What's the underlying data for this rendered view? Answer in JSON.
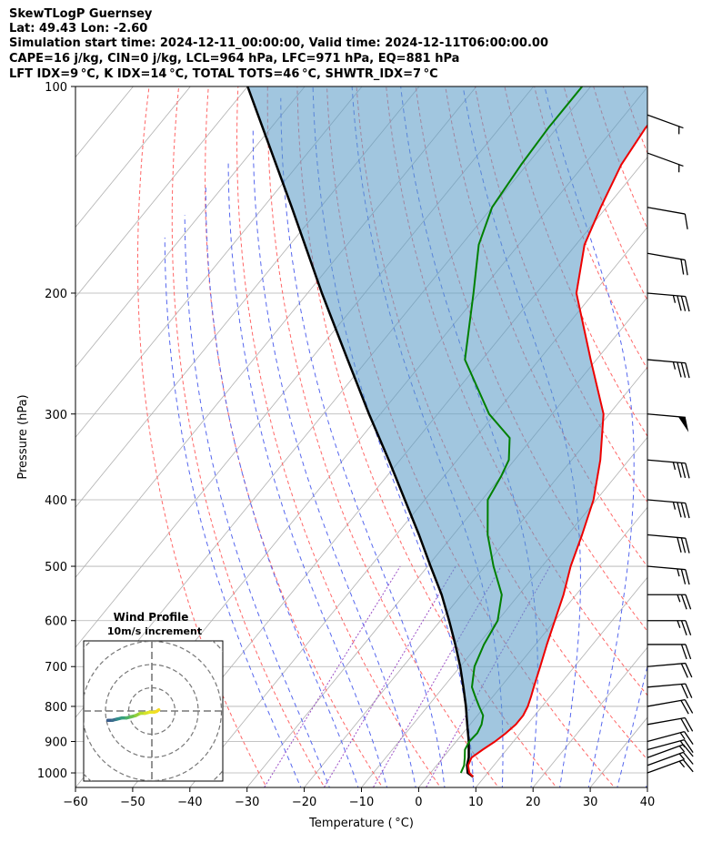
{
  "header": {
    "line1": "SkewTLogP Guernsey",
    "line2": "Lat: 49.43   Lon: -2.60",
    "line3": "Simulation start time: 2024-12-11_00:00:00, Valid time: 2024-12-11T06:00:00.00",
    "line4": "CAPE=16 j/kg, CIN=0 j/kg, LCL=964 hPa, LFC=971 hPa, EQ=881 hPa",
    "line5": "LFT IDX=9 °C, K IDX=14 °C, TOTAL TOTS=46 °C, SHWTR_IDX=7 °C"
  },
  "chart_data": {
    "type": "skewt",
    "xlabel": "Temperature ( °C)",
    "ylabel": "Pressure (hPa)",
    "xlim": [
      -60,
      40
    ],
    "ylim": [
      1050,
      100
    ],
    "xticks": [
      -60,
      -50,
      -40,
      -30,
      -20,
      -10,
      0,
      10,
      20,
      30,
      40
    ],
    "yticks": [
      100,
      200,
      300,
      400,
      500,
      600,
      700,
      800,
      900,
      1000
    ],
    "temperature": [
      [
        1013,
        8
      ],
      [
        1000,
        6.8
      ],
      [
        975,
        5.5
      ],
      [
        950,
        5
      ],
      [
        925,
        5.8
      ],
      [
        900,
        6.8
      ],
      [
        875,
        7.5
      ],
      [
        850,
        8
      ],
      [
        825,
        8
      ],
      [
        800,
        7.5
      ],
      [
        775,
        6.7
      ],
      [
        750,
        5.8
      ],
      [
        700,
        4
      ],
      [
        650,
        2
      ],
      [
        600,
        0
      ],
      [
        550,
        -2.2
      ],
      [
        500,
        -5
      ],
      [
        450,
        -7.5
      ],
      [
        400,
        -10.5
      ],
      [
        350,
        -15
      ],
      [
        300,
        -21
      ],
      [
        250,
        -31
      ],
      [
        200,
        -43
      ],
      [
        170,
        -48.5
      ],
      [
        150,
        -51
      ],
      [
        130,
        -53.5
      ],
      [
        115,
        -54.5
      ],
      [
        100,
        -54.5
      ]
    ],
    "dewpoint": [
      [
        1000,
        5.3
      ],
      [
        975,
        4.8
      ],
      [
        950,
        3.8
      ],
      [
        925,
        2.7
      ],
      [
        900,
        2.3
      ],
      [
        875,
        2.5
      ],
      [
        850,
        2
      ],
      [
        825,
        1
      ],
      [
        800,
        -1
      ],
      [
        775,
        -3
      ],
      [
        750,
        -5
      ],
      [
        700,
        -7.5
      ],
      [
        650,
        -9
      ],
      [
        600,
        -10
      ],
      [
        550,
        -13
      ],
      [
        500,
        -18.5
      ],
      [
        450,
        -24
      ],
      [
        400,
        -29
      ],
      [
        370,
        -30
      ],
      [
        350,
        -31
      ],
      [
        325,
        -34
      ],
      [
        300,
        -41
      ],
      [
        250,
        -53
      ],
      [
        200,
        -61
      ],
      [
        170,
        -67
      ],
      [
        150,
        -70
      ],
      [
        130,
        -71
      ],
      [
        115,
        -71.5
      ],
      [
        100,
        -71.5
      ]
    ],
    "parcel": [
      [
        1013,
        8
      ],
      [
        1000,
        6.5
      ],
      [
        975,
        5.3
      ],
      [
        950,
        4.5
      ],
      [
        900,
        2.2
      ],
      [
        850,
        -0.5
      ],
      [
        800,
        -3.3
      ],
      [
        750,
        -6.5
      ],
      [
        700,
        -10
      ],
      [
        650,
        -14
      ],
      [
        600,
        -18.5
      ],
      [
        550,
        -23.5
      ],
      [
        500,
        -29.5
      ],
      [
        450,
        -36
      ],
      [
        400,
        -43.5
      ],
      [
        350,
        -52
      ],
      [
        300,
        -62
      ],
      [
        250,
        -73.5
      ],
      [
        200,
        -87.5
      ],
      [
        150,
        -105
      ],
      [
        100,
        -130
      ]
    ],
    "wind_barbs": [
      {
        "p": 1000,
        "speed_kt": 15,
        "dir": 250
      },
      {
        "p": 975,
        "speed_kt": 15,
        "dir": 250
      },
      {
        "p": 950,
        "speed_kt": 15,
        "dir": 250
      },
      {
        "p": 925,
        "speed_kt": 15,
        "dir": 255
      },
      {
        "p": 900,
        "speed_kt": 15,
        "dir": 255
      },
      {
        "p": 850,
        "speed_kt": 20,
        "dir": 260
      },
      {
        "p": 800,
        "speed_kt": 20,
        "dir": 260
      },
      {
        "p": 750,
        "speed_kt": 20,
        "dir": 265
      },
      {
        "p": 700,
        "speed_kt": 20,
        "dir": 265
      },
      {
        "p": 650,
        "speed_kt": 20,
        "dir": 270
      },
      {
        "p": 600,
        "speed_kt": 25,
        "dir": 270
      },
      {
        "p": 550,
        "speed_kt": 25,
        "dir": 270
      },
      {
        "p": 500,
        "speed_kt": 25,
        "dir": 275
      },
      {
        "p": 450,
        "speed_kt": 30,
        "dir": 275
      },
      {
        "p": 400,
        "speed_kt": 35,
        "dir": 275
      },
      {
        "p": 350,
        "speed_kt": 35,
        "dir": 275
      },
      {
        "p": 300,
        "speed_kt": 50,
        "dir": 275
      },
      {
        "p": 250,
        "speed_kt": 35,
        "dir": 275
      },
      {
        "p": 200,
        "speed_kt": 35,
        "dir": 275
      },
      {
        "p": 175,
        "speed_kt": 20,
        "dir": 280
      },
      {
        "p": 150,
        "speed_kt": 10,
        "dir": 280
      },
      {
        "p": 125,
        "speed_kt": 5,
        "dir": 290
      },
      {
        "p": 110,
        "speed_kt": 5,
        "dir": 290
      }
    ],
    "hodograph": {
      "title": "Wind Profile",
      "subtitle": "10m/s increment",
      "rings": [
        10,
        20,
        30,
        40
      ],
      "points": [
        [
          -19,
          -4
        ],
        [
          -17,
          -4
        ],
        [
          -15,
          -3.5
        ],
        [
          -13,
          -3
        ],
        [
          -11,
          -3
        ],
        [
          -9,
          -2.5
        ],
        [
          -7,
          -2
        ],
        [
          -5,
          -1
        ],
        [
          -3,
          -1
        ],
        [
          -1,
          -0.5
        ],
        [
          1,
          -0.5
        ],
        [
          2,
          -0.2
        ],
        [
          3,
          0.5
        ]
      ]
    }
  }
}
